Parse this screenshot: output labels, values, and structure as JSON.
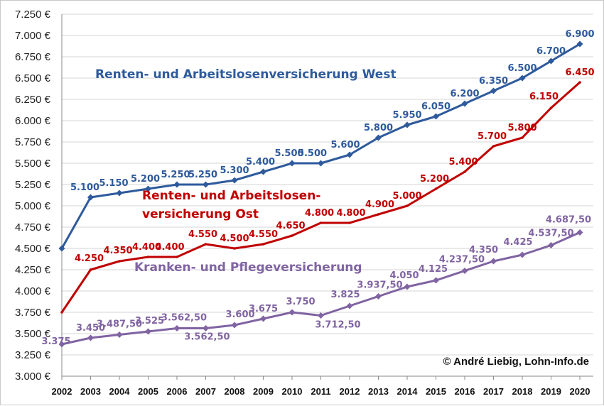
{
  "chart_data": {
    "type": "line",
    "x": [
      "2002",
      "2003",
      "2004",
      "2005",
      "2006",
      "2007",
      "2008",
      "2009",
      "2010",
      "2011",
      "2012",
      "2013",
      "2014",
      "2015",
      "2016",
      "2017",
      "2018",
      "2019",
      "2020"
    ],
    "ylim": [
      3000,
      7250
    ],
    "yticks": [
      3000,
      3250,
      3500,
      3750,
      4000,
      4250,
      4500,
      4750,
      5000,
      5250,
      5500,
      5750,
      6000,
      6250,
      6500,
      6750,
      7000,
      7250
    ],
    "ytick_labels": [
      "3.000 €",
      "3.250 €",
      "3.500 €",
      "3.750 €",
      "4.000 €",
      "4.250 €",
      "4.500 €",
      "4.750 €",
      "5.000 €",
      "5.250 €",
      "5.500 €",
      "5.750 €",
      "6.000 €",
      "6.250 €",
      "6.500 €",
      "6.750 €",
      "7.000 €",
      "7.250 €"
    ],
    "grid": true,
    "series": [
      {
        "name": "Renten- und Arbeitslosenversicherung West",
        "color": "#2E5A9C",
        "marker": "diamond",
        "values": [
          4500,
          5100,
          5150,
          5200,
          5250,
          5250,
          5300,
          5400,
          5500,
          5500,
          5600,
          5800,
          5950,
          6050,
          6200,
          6350,
          6500,
          6700,
          6900
        ],
        "labels": [
          "",
          "5.100",
          "5.150",
          "5.200",
          "5.250",
          "5.250",
          "5.300",
          "5.400",
          "5.500",
          "5.500",
          "5.600",
          "5.800",
          "5.950",
          "6.050",
          "6.200",
          "6.350",
          "6.500",
          "6.700",
          "6.900"
        ]
      },
      {
        "name_lines": [
          "Renten- und Arbeitslosen-",
          "versicherung Ost"
        ],
        "color": "#C00000",
        "marker": "none",
        "values": [
          3750,
          4250,
          4350,
          4400,
          4400,
          4550,
          4500,
          4550,
          4650,
          4800,
          4800,
          4900,
          5000,
          5200,
          5400,
          5700,
          5800,
          6150,
          6450
        ],
        "labels": [
          "",
          "4.250",
          "4.350",
          "4.400",
          "4.400",
          "4.550",
          "4.500",
          "4.550",
          "4.650",
          "4.800",
          "4.800",
          "4.900",
          "5.000",
          "5.200",
          "5.400",
          "5.700",
          "5.800",
          "6.150",
          "6.450"
        ]
      },
      {
        "name": "Kranken- und Pflegeversicherung",
        "color": "#8064A2",
        "marker": "diamond",
        "values": [
          3375,
          3450,
          3487.5,
          3525,
          3562.5,
          3562.5,
          3600,
          3675,
          3750,
          3712.5,
          3825,
          3937.5,
          4050,
          4125,
          4237.5,
          4350,
          4425,
          4537.5,
          4687.5
        ],
        "labels": [
          "3.375",
          "3.450",
          "3.487,50",
          "3.525",
          "3.562,50",
          "3.562,50",
          "3.600",
          "3.675",
          "3.750",
          "3.712,50",
          "3.825",
          "3.937,50",
          "4.050",
          "4.125",
          "4.237,50",
          "4.350",
          "4.425",
          "4.537,50",
          "4.687,50"
        ]
      }
    ],
    "credit": "© André Liebig, Lohn-Info.de"
  }
}
